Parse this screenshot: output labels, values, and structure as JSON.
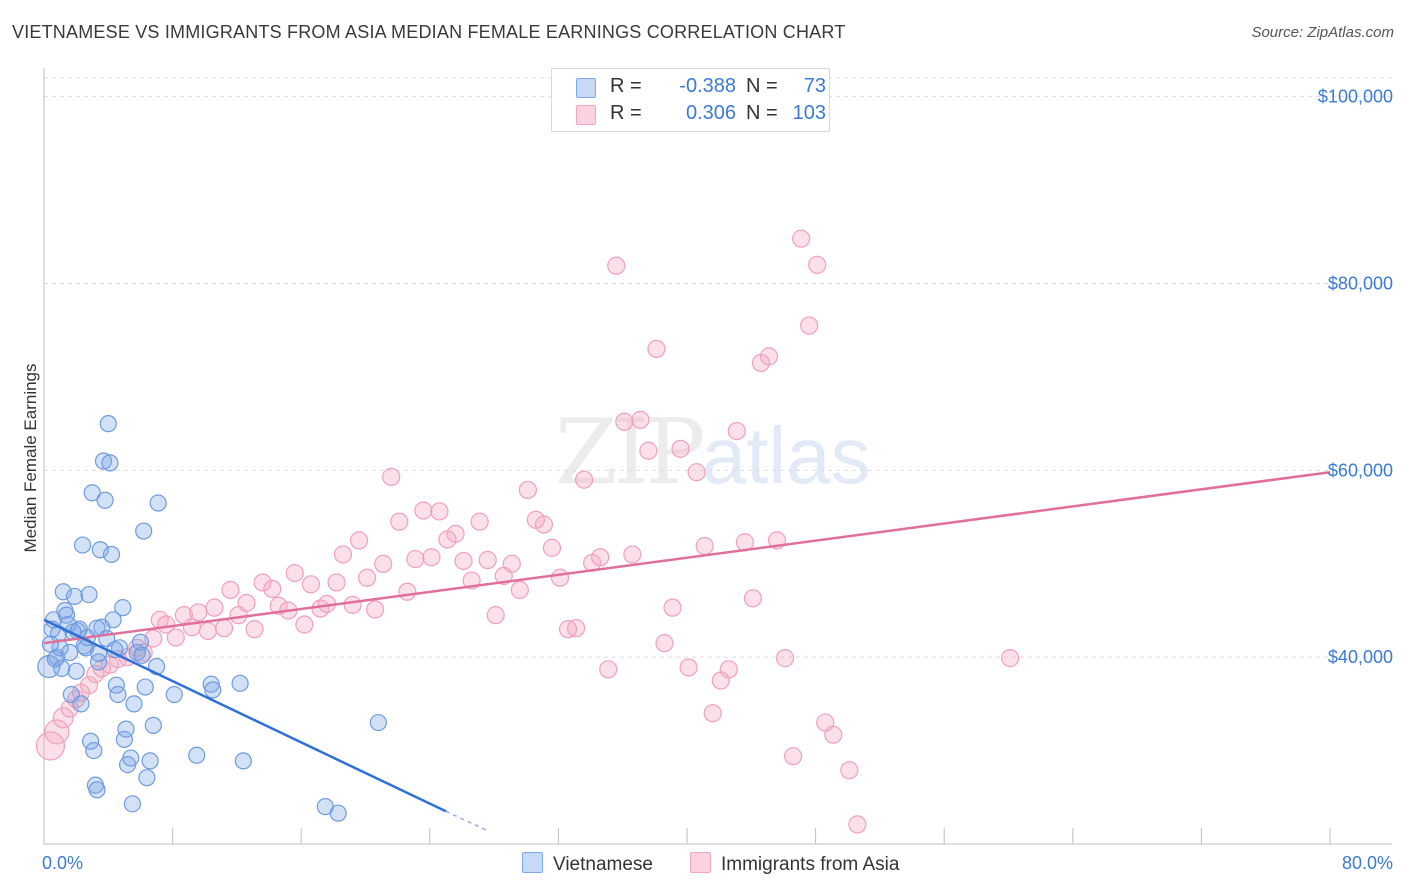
{
  "header": {
    "title": "VIETNAMESE VS IMMIGRANTS FROM ASIA MEDIAN FEMALE EARNINGS CORRELATION CHART",
    "source": "Source: ZipAtlas.com"
  },
  "watermark": {
    "zip": "ZIP",
    "atlas": "atlas"
  },
  "legend": {
    "rows": [
      {
        "r_label": "R =",
        "r_value": "-0.388",
        "n_label": "N =",
        "n_value": "73"
      },
      {
        "r_label": "R =",
        "r_value": "0.306",
        "n_label": "N =",
        "n_value": "103"
      }
    ]
  },
  "chart_data": {
    "type": "scatter",
    "title": "VIETNAMESE VS IMMIGRANTS FROM ASIA MEDIAN FEMALE EARNINGS CORRELATION CHART",
    "xlabel": "",
    "ylabel": "Median Female Earnings",
    "xlim": [
      0,
      80
    ],
    "ylim": [
      20000,
      102000
    ],
    "x_tick_labels": [
      "0.0%",
      "80.0%"
    ],
    "y_ticks": [
      40000,
      60000,
      80000,
      100000
    ],
    "y_tick_labels": [
      "$40,000",
      "$60,000",
      "$80,000",
      "$100,000"
    ],
    "grid": "horizontal dashed",
    "legend_position": "top-center",
    "colors": {
      "vietnamese": "#7fa8e6",
      "asia": "#f4a6c0",
      "vietnamese_line": "#2f6fd8",
      "asia_line": "#e0709a"
    },
    "series": [
      {
        "name": "Vietnamese",
        "color": "#7fa8e6",
        "trend": {
          "x": [
            0,
            25
          ],
          "y": [
            44000,
            23500
          ],
          "dashed_to": [
            27.5,
            21500
          ]
        },
        "points": [
          [
            0.3,
            39000
          ],
          [
            0.5,
            43000
          ],
          [
            0.6,
            44000
          ],
          [
            0.8,
            40000
          ],
          [
            0.9,
            42500
          ],
          [
            1,
            41000
          ],
          [
            1.2,
            47000
          ],
          [
            1.3,
            45000
          ],
          [
            1.4,
            44500
          ],
          [
            1.6,
            40500
          ],
          [
            1.7,
            36000
          ],
          [
            1.9,
            46500
          ],
          [
            2,
            38500
          ],
          [
            2.1,
            42800
          ],
          [
            2.2,
            43000
          ],
          [
            2.3,
            35000
          ],
          [
            2.4,
            52000
          ],
          [
            2.6,
            41000
          ],
          [
            2.8,
            46700
          ],
          [
            2.9,
            31000
          ],
          [
            3,
            57600
          ],
          [
            3.1,
            30000
          ],
          [
            3.2,
            26300
          ],
          [
            3.3,
            25800
          ],
          [
            3.4,
            39500
          ],
          [
            3.5,
            51500
          ],
          [
            3.6,
            43200
          ],
          [
            3.7,
            61000
          ],
          [
            3.8,
            56800
          ],
          [
            3.9,
            42000
          ],
          [
            4,
            65000
          ],
          [
            4.1,
            60800
          ],
          [
            4.2,
            51000
          ],
          [
            4.3,
            44000
          ],
          [
            4.5,
            37000
          ],
          [
            4.6,
            36000
          ],
          [
            4.7,
            41000
          ],
          [
            4.9,
            45300
          ],
          [
            5,
            31200
          ],
          [
            5.1,
            32300
          ],
          [
            5.2,
            28500
          ],
          [
            5.4,
            29200
          ],
          [
            5.6,
            35000
          ],
          [
            5.8,
            40500
          ],
          [
            6,
            41600
          ],
          [
            6.2,
            53500
          ],
          [
            6.3,
            36800
          ],
          [
            6.4,
            27100
          ],
          [
            6.6,
            28900
          ],
          [
            6.8,
            32700
          ],
          [
            7,
            39000
          ],
          [
            7.1,
            56500
          ],
          [
            8.1,
            36000
          ],
          [
            9.5,
            29500
          ],
          [
            10.4,
            37100
          ],
          [
            10.5,
            36500
          ],
          [
            12.2,
            37200
          ],
          [
            12.4,
            28900
          ],
          [
            5.5,
            24300
          ],
          [
            17.5,
            24000
          ],
          [
            18.3,
            23300
          ],
          [
            20.8,
            33000
          ],
          [
            1.5,
            43500
          ],
          [
            2.5,
            41200
          ],
          [
            3.4,
            40400
          ],
          [
            0.7,
            39800
          ],
          [
            1.1,
            38800
          ],
          [
            4.4,
            40800
          ],
          [
            2.7,
            42100
          ],
          [
            6.1,
            40200
          ],
          [
            3.3,
            43100
          ],
          [
            1.8,
            42700
          ],
          [
            0.4,
            41400
          ]
        ]
      },
      {
        "name": "Immigrants from Asia",
        "color": "#f4a6c0",
        "trend": {
          "x": [
            0,
            80
          ],
          "y": [
            41500,
            59800
          ]
        },
        "points": [
          [
            0.4,
            30500
          ],
          [
            0.8,
            32000
          ],
          [
            1.2,
            33500
          ],
          [
            1.6,
            34500
          ],
          [
            2,
            35500
          ],
          [
            2.3,
            36200
          ],
          [
            2.8,
            37000
          ],
          [
            3.2,
            38200
          ],
          [
            3.6,
            38800
          ],
          [
            4.1,
            39200
          ],
          [
            4.6,
            39800
          ],
          [
            5.2,
            40000
          ],
          [
            5.8,
            41000
          ],
          [
            6.2,
            40500
          ],
          [
            6.8,
            42000
          ],
          [
            7.2,
            44000
          ],
          [
            7.6,
            43500
          ],
          [
            8.2,
            42100
          ],
          [
            8.7,
            44500
          ],
          [
            9.2,
            43200
          ],
          [
            9.6,
            44800
          ],
          [
            10.2,
            42800
          ],
          [
            10.6,
            45300
          ],
          [
            11.2,
            43100
          ],
          [
            11.6,
            47200
          ],
          [
            12.1,
            44500
          ],
          [
            12.6,
            45800
          ],
          [
            13.1,
            43000
          ],
          [
            13.6,
            48000
          ],
          [
            14.2,
            47300
          ],
          [
            14.6,
            45500
          ],
          [
            15.2,
            45000
          ],
          [
            15.6,
            49000
          ],
          [
            16.2,
            43500
          ],
          [
            16.6,
            47800
          ],
          [
            17.2,
            45200
          ],
          [
            17.6,
            45700
          ],
          [
            18.2,
            48000
          ],
          [
            18.6,
            51000
          ],
          [
            19.2,
            45600
          ],
          [
            19.6,
            52500
          ],
          [
            20.1,
            48500
          ],
          [
            20.6,
            45100
          ],
          [
            21.1,
            50000
          ],
          [
            21.6,
            59300
          ],
          [
            22.1,
            54500
          ],
          [
            22.6,
            47000
          ],
          [
            23.1,
            50500
          ],
          [
            23.6,
            55700
          ],
          [
            24.1,
            50700
          ],
          [
            24.6,
            55600
          ],
          [
            25.1,
            52600
          ],
          [
            25.6,
            53200
          ],
          [
            26.1,
            50300
          ],
          [
            26.6,
            48200
          ],
          [
            27.1,
            54500
          ],
          [
            27.6,
            50400
          ],
          [
            28.1,
            44500
          ],
          [
            28.6,
            48700
          ],
          [
            29.1,
            50000
          ],
          [
            29.6,
            47200
          ],
          [
            30.1,
            57900
          ],
          [
            30.6,
            54700
          ],
          [
            31.1,
            54200
          ],
          [
            31.6,
            51700
          ],
          [
            32.1,
            48500
          ],
          [
            32.6,
            43000
          ],
          [
            33.1,
            43100
          ],
          [
            33.6,
            59000
          ],
          [
            34.1,
            50100
          ],
          [
            34.6,
            50700
          ],
          [
            35.1,
            38700
          ],
          [
            35.6,
            81900
          ],
          [
            36.1,
            65200
          ],
          [
            36.6,
            51000
          ],
          [
            37.1,
            65400
          ],
          [
            37.6,
            62100
          ],
          [
            38.1,
            73000
          ],
          [
            38.6,
            41500
          ],
          [
            39.1,
            45300
          ],
          [
            39.6,
            62300
          ],
          [
            40.1,
            38900
          ],
          [
            40.6,
            59800
          ],
          [
            41.1,
            51900
          ],
          [
            41.6,
            34000
          ],
          [
            42.1,
            37500
          ],
          [
            42.6,
            38700
          ],
          [
            43.1,
            64200
          ],
          [
            43.6,
            52300
          ],
          [
            44.1,
            46300
          ],
          [
            44.6,
            71500
          ],
          [
            45.1,
            72200
          ],
          [
            45.6,
            52500
          ],
          [
            46.1,
            39900
          ],
          [
            46.6,
            29400
          ],
          [
            47.1,
            84800
          ],
          [
            47.6,
            75500
          ],
          [
            48.1,
            82000
          ],
          [
            48.6,
            33000
          ],
          [
            49.1,
            31700
          ],
          [
            50.1,
            27900
          ],
          [
            50.6,
            22100
          ],
          [
            60.1,
            39900
          ]
        ]
      }
    ]
  }
}
